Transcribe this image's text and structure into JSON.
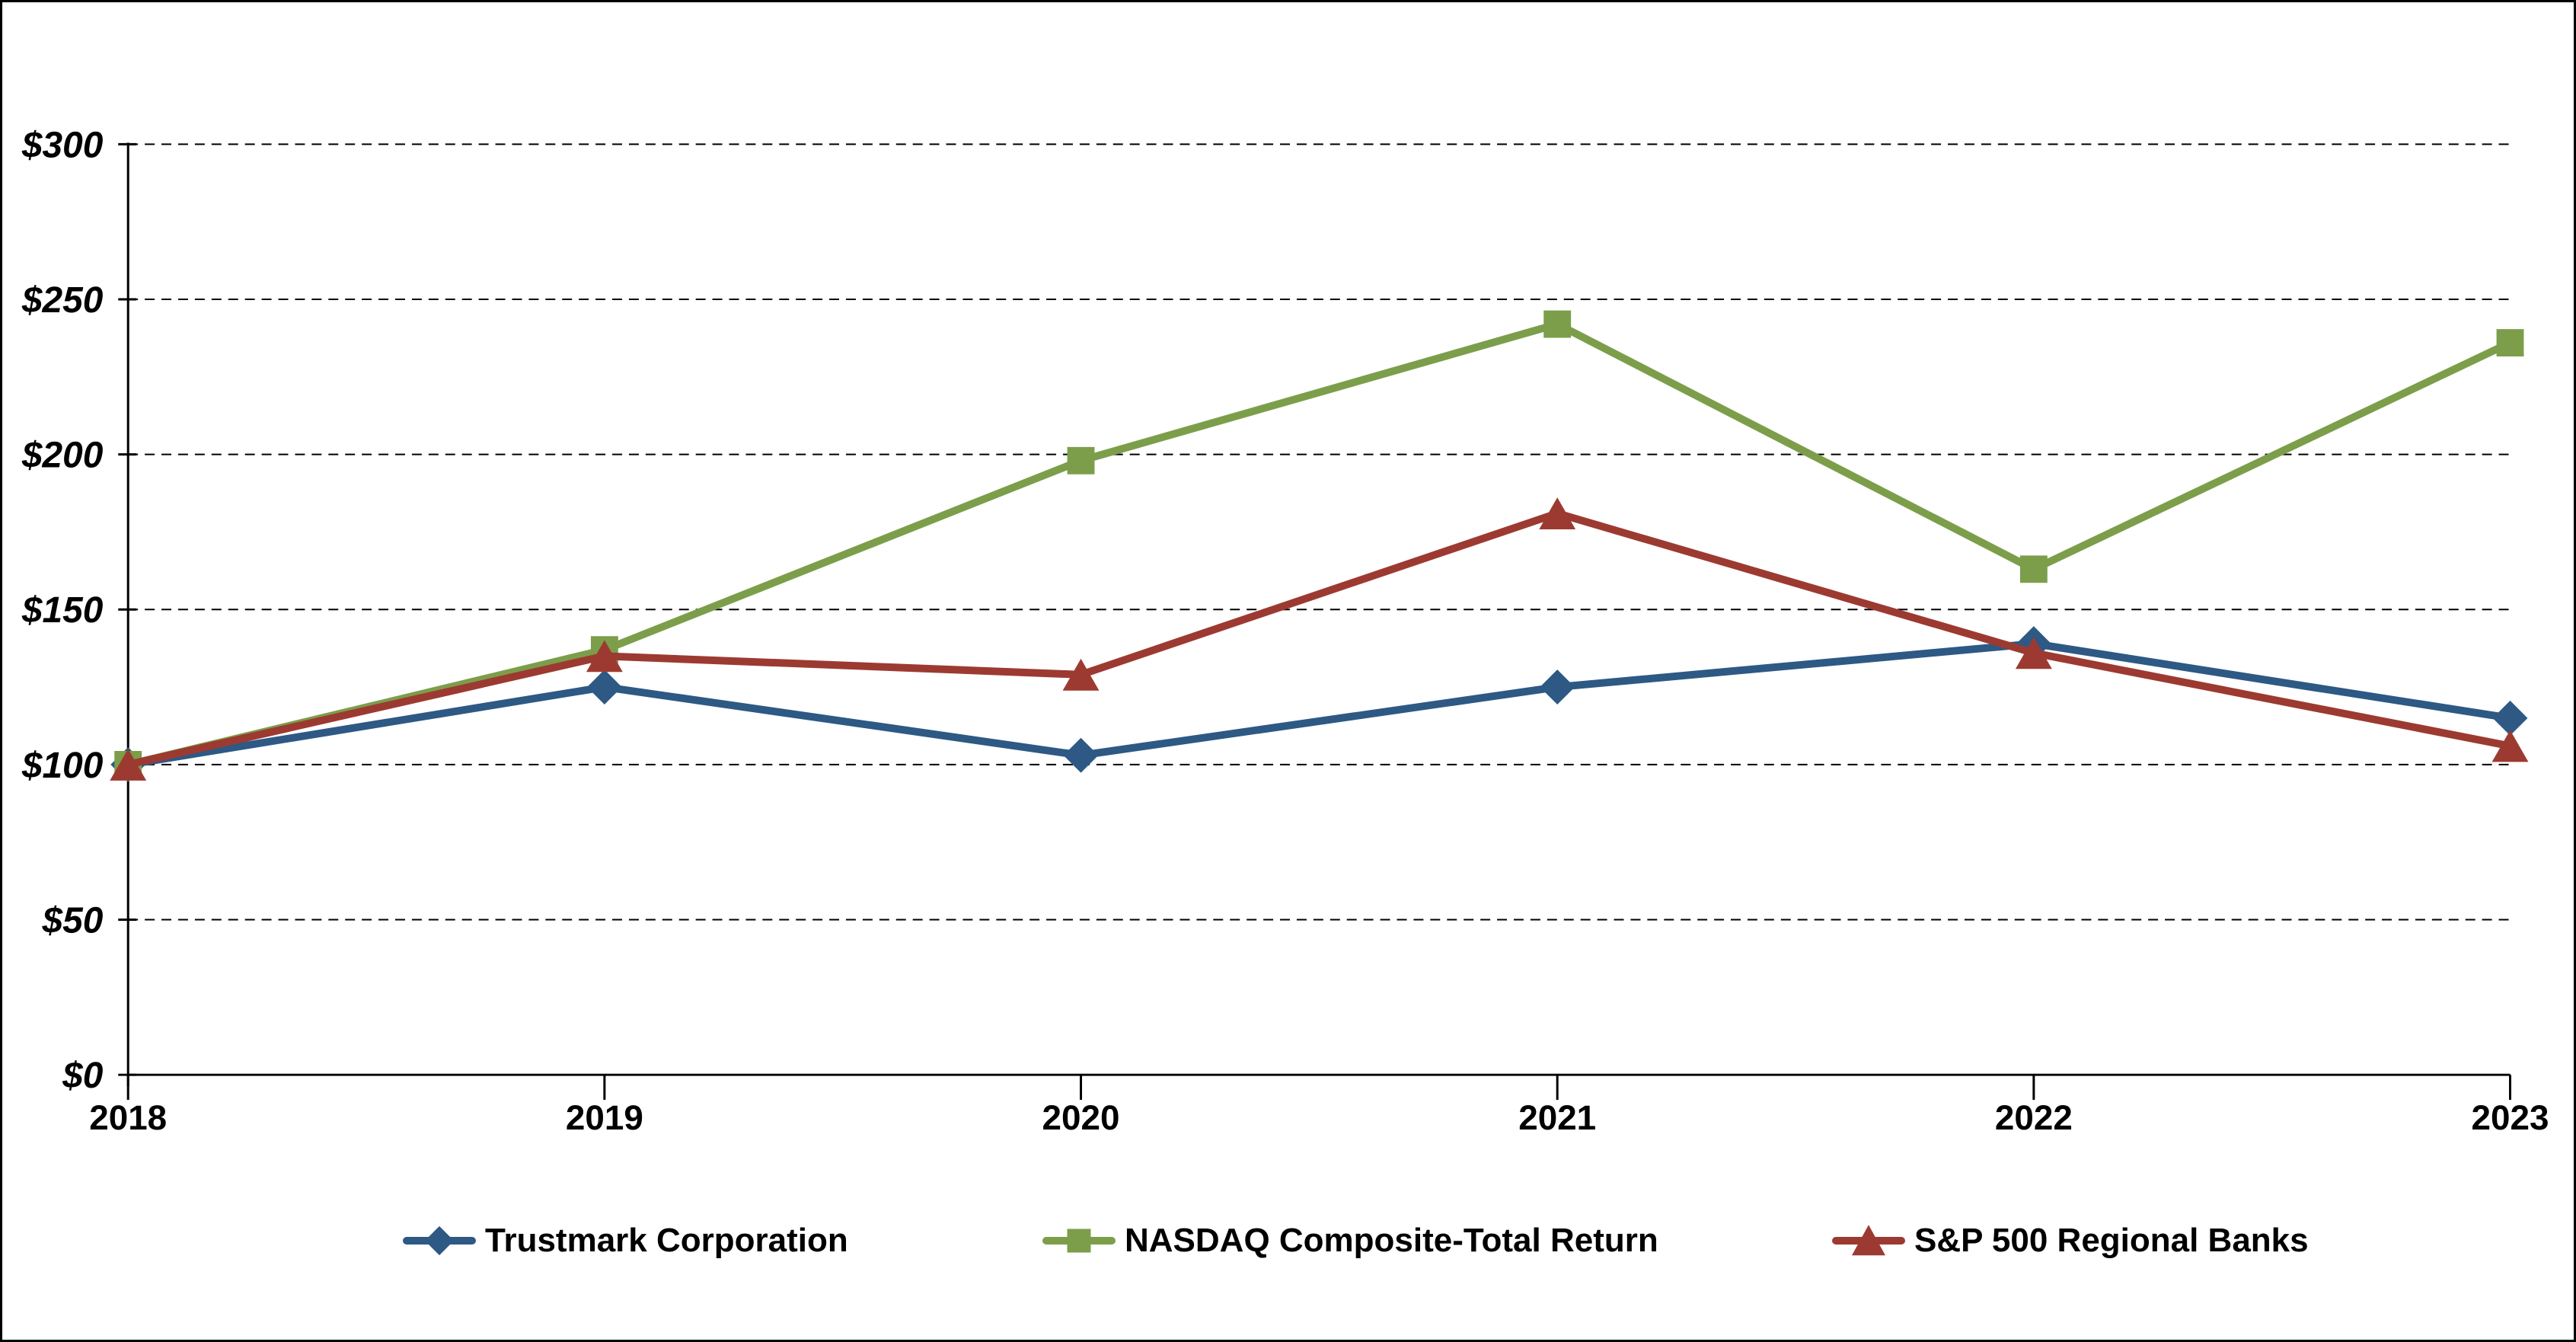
{
  "chart_data": {
    "type": "line",
    "title": "",
    "categories": [
      "2018",
      "2019",
      "2020",
      "2021",
      "2022",
      "2023"
    ],
    "series": [
      {
        "name": "Trustmark Corporation",
        "marker": "diamond",
        "color": "#2D5984",
        "values": [
          100,
          125,
          103,
          125,
          139,
          115
        ]
      },
      {
        "name": "NASDAQ Composite-Total Return",
        "marker": "square",
        "color": "#7C9E4A",
        "values": [
          100,
          137,
          198,
          242,
          163,
          236
        ]
      },
      {
        "name": "S&P 500 Regional Banks",
        "marker": "triangle",
        "color": "#9C3A31",
        "values": [
          100,
          135,
          129,
          181,
          136,
          106
        ]
      }
    ],
    "xlabel": "",
    "ylabel": "",
    "ylim": [
      0,
      300
    ],
    "y_tick_step": 50,
    "y_tick_labels": [
      "$0",
      "$50",
      "$100",
      "$150",
      "$200",
      "$250",
      "$300"
    ],
    "grid": "horizontal-dashed",
    "legend_position": "bottom",
    "axis_color": "#000000",
    "background_color": "#FFFFFF"
  }
}
